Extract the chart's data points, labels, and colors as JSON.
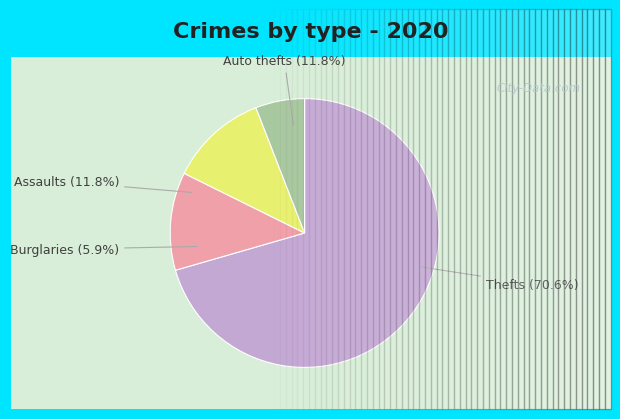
{
  "title": "Crimes by type - 2020",
  "slices": [
    {
      "label": "Thefts",
      "pct": 70.6,
      "color": "#C4A8D4"
    },
    {
      "label": "Auto thefts",
      "pct": 11.8,
      "color": "#F0A0A8"
    },
    {
      "label": "Assaults",
      "pct": 11.8,
      "color": "#E8F070"
    },
    {
      "label": "Burglaries",
      "pct": 5.9,
      "color": "#A8C8A0"
    }
  ],
  "bg_cyan": "#00E5FF",
  "bg_inner": "#D8EED8",
  "bg_right": "#E8F0F0",
  "title_fontsize": 16,
  "label_fontsize": 9,
  "watermark": "City-Data.com",
  "startangle": 90,
  "label_annotations": [
    {
      "label": "Thefts (70.6%)",
      "xyt": [
        1.35,
        -0.38
      ],
      "xya": [
        0.85,
        -0.25
      ],
      "ha": "left"
    },
    {
      "label": "Auto thefts (11.8%)",
      "xyt": [
        -0.15,
        1.28
      ],
      "xya": [
        -0.08,
        0.78
      ],
      "ha": "center"
    },
    {
      "label": "Assaults (11.8%)",
      "xyt": [
        -1.38,
        0.38
      ],
      "xya": [
        -0.82,
        0.3
      ],
      "ha": "right"
    },
    {
      "label": "Burglaries (5.9%)",
      "xyt": [
        -1.38,
        -0.12
      ],
      "xya": [
        -0.78,
        -0.1
      ],
      "ha": "right"
    }
  ]
}
